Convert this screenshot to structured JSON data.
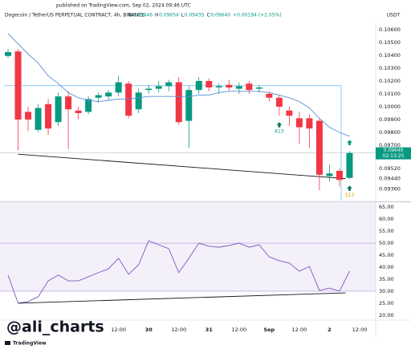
{
  "header": {
    "published": "published on TradingView.com, Sep 02, 2024 09:46 UTC",
    "symbol": "Dogecoin / TetherUS PERPETUAL CONTRACT, 4h, BINANCE",
    "ohlc": [
      {
        "label": "O",
        "value": "0.09446"
      },
      {
        "label": "H",
        "value": "0.09654"
      },
      {
        "label": "L",
        "value": "0.09435"
      },
      {
        "label": "C",
        "value": "0.09640"
      }
    ],
    "change": "+0.00194 (+2.05%)",
    "currency": "USDT"
  },
  "watermark": "@ali_charts",
  "brand": "TradingView",
  "chart_data": [
    {
      "type": "candlestick",
      "up_color": "#089981",
      "down_color": "#f23645",
      "open": [
        0.10395,
        0.1043,
        0.0996,
        0.0982,
        0.1002,
        0.0988,
        0.1008,
        0.0997,
        0.0996,
        0.1007,
        0.1008,
        0.1011,
        0.1018,
        0.0998,
        0.1013,
        0.1014,
        0.1016,
        0.1019,
        0.0989,
        0.1013,
        0.102,
        0.1015,
        0.1017,
        0.1014,
        0.1018,
        0.1014,
        0.101,
        0.1007,
        0.0997,
        0.0991,
        0.0991,
        0.0989,
        0.0946,
        0.095,
        0.09446
      ],
      "high": [
        0.1045,
        0.1045,
        0.1,
        0.1002,
        0.1006,
        0.1011,
        0.1012,
        0.1,
        0.1008,
        0.1011,
        0.1013,
        0.1024,
        0.102,
        0.1014,
        0.1017,
        0.102,
        0.1021,
        0.1023,
        0.1016,
        0.1023,
        0.1022,
        0.1018,
        0.1021,
        0.1019,
        0.102,
        0.1017,
        0.1012,
        0.1009,
        0.1,
        0.0996,
        0.0994,
        0.0991,
        0.0955,
        0.0952,
        0.09654
      ],
      "low": [
        0.1038,
        0.0966,
        0.0981,
        0.098,
        0.0978,
        0.0985,
        0.0967,
        0.099,
        0.0994,
        0.1003,
        0.1005,
        0.1008,
        0.0991,
        0.0995,
        0.101,
        0.1011,
        0.1012,
        0.0986,
        0.0968,
        0.101,
        0.1012,
        0.101,
        0.1012,
        0.101,
        0.101,
        0.1011,
        0.1004,
        0.0993,
        0.0985,
        0.0971,
        0.0968,
        0.0935,
        0.0942,
        0.0938,
        0.09435
      ],
      "close": [
        0.10425,
        0.099,
        0.099,
        0.0999,
        0.0983,
        0.1008,
        0.0998,
        0.0995,
        0.1006,
        0.1009,
        0.1011,
        0.1019,
        0.0993,
        0.1011,
        0.1014,
        0.1016,
        0.1019,
        0.0988,
        0.1013,
        0.102,
        0.1015,
        0.1016,
        0.1015,
        0.1016,
        0.1013,
        0.1015,
        0.1007,
        0.1,
        0.0993,
        0.0984,
        0.0983,
        0.0947,
        0.0948,
        0.0943,
        0.0964
      ],
      "moving_average": {
        "color": "#5b8fd6",
        "values": [
          0.1057,
          0.1049,
          0.1041,
          0.1034,
          0.1024,
          0.1018,
          0.1011,
          0.1007,
          0.1005,
          0.1004,
          0.1005,
          0.1006,
          0.1006,
          0.1007,
          0.1008,
          0.1008,
          0.1008,
          0.1008,
          0.1008,
          0.1009,
          0.1009,
          0.1011,
          0.1012,
          0.1012,
          0.1012,
          0.1012,
          0.1011,
          0.1009,
          0.1007,
          0.1004,
          0.0999,
          0.0991,
          0.0984,
          0.098,
          0.0977
        ]
      },
      "level_line": {
        "value": 0.10165,
        "color": "#a5d6f7"
      },
      "trendline": {
        "x": [
          1,
          33.6
        ],
        "y": [
          0.0963,
          0.0944
        ],
        "color": "#131722"
      },
      "signals": [
        null,
        null,
        null,
        null,
        null,
        null,
        null,
        null,
        null,
        null,
        null,
        null,
        null,
        null,
        null,
        null,
        null,
        null,
        null,
        null,
        null,
        null,
        null,
        null,
        null,
        null,
        null,
        "A13",
        null,
        null,
        null,
        null,
        null,
        null,
        "S13"
      ],
      "last_price_label": "0.09640",
      "countdown": "02:13:25",
      "xlim": [
        -0.8,
        36.6
      ],
      "ylim": [
        0.09269,
        0.10656
      ],
      "yticks": [
        {
          "value": 0.106,
          "label": "0.10600"
        },
        {
          "value": 0.105,
          "label": "0.10500"
        },
        {
          "value": 0.104,
          "label": "0.10400"
        },
        {
          "value": 0.103,
          "label": "0.10300"
        },
        {
          "value": 0.102,
          "label": "0.10200"
        },
        {
          "value": 0.101,
          "label": "0.10100"
        },
        {
          "value": 0.1,
          "label": "0.10000"
        },
        {
          "value": 0.099,
          "label": "0.09900"
        },
        {
          "value": 0.098,
          "label": "0.09800"
        },
        {
          "value": 0.097,
          "label": "0.09700"
        },
        {
          "value": 0.0952,
          "label": "0.09520"
        },
        {
          "value": 0.0944,
          "label": "0.09440"
        },
        {
          "value": 0.0936,
          "label": "0.09360"
        }
      ]
    },
    {
      "type": "line",
      "color": "#7e57c2",
      "values": [
        36.7,
        25,
        25.7,
        27.7,
        34.3,
        36.7,
        34.3,
        34.3,
        36,
        37.7,
        39.3,
        43.7,
        37,
        41,
        51,
        49.3,
        47.7,
        37.7,
        43.7,
        50,
        48.7,
        48.3,
        49,
        50,
        48.3,
        49.3,
        44.3,
        42.7,
        41.7,
        38.3,
        40.3,
        30.3,
        31.3,
        30,
        38.3
      ],
      "band": [
        30,
        70
      ],
      "midline": 50,
      "trendline": {
        "x": [
          1,
          33.6
        ],
        "y": [
          25,
          29.3
        ],
        "color": "#131722"
      },
      "xlim": [
        -0.8,
        36.6
      ],
      "ylim": [
        18.3,
        66.7
      ],
      "yticks": [
        {
          "value": 65,
          "label": "65.00"
        },
        {
          "value": 60,
          "label": "60.00"
        },
        {
          "value": 55,
          "label": "55.00"
        },
        {
          "value": 50,
          "label": "50.00"
        },
        {
          "value": 45,
          "label": "45.00"
        },
        {
          "value": 40,
          "label": "40.00"
        },
        {
          "value": 35,
          "label": "35.00"
        },
        {
          "value": 30,
          "label": "30.00"
        },
        {
          "value": 25,
          "label": "25.00"
        },
        {
          "value": 20,
          "label": "20.00"
        }
      ],
      "xticks": [
        {
          "value": 11,
          "label": "12:00"
        },
        {
          "value": 14,
          "label": "30"
        },
        {
          "value": 17,
          "label": "12:00"
        },
        {
          "value": 20,
          "label": "31"
        },
        {
          "value": 23,
          "label": "12:00"
        },
        {
          "value": 26,
          "label": "Sep"
        },
        {
          "value": 29,
          "label": "12:00"
        },
        {
          "value": 32,
          "label": "2"
        },
        {
          "value": 35,
          "label": "12:00"
        }
      ]
    }
  ]
}
